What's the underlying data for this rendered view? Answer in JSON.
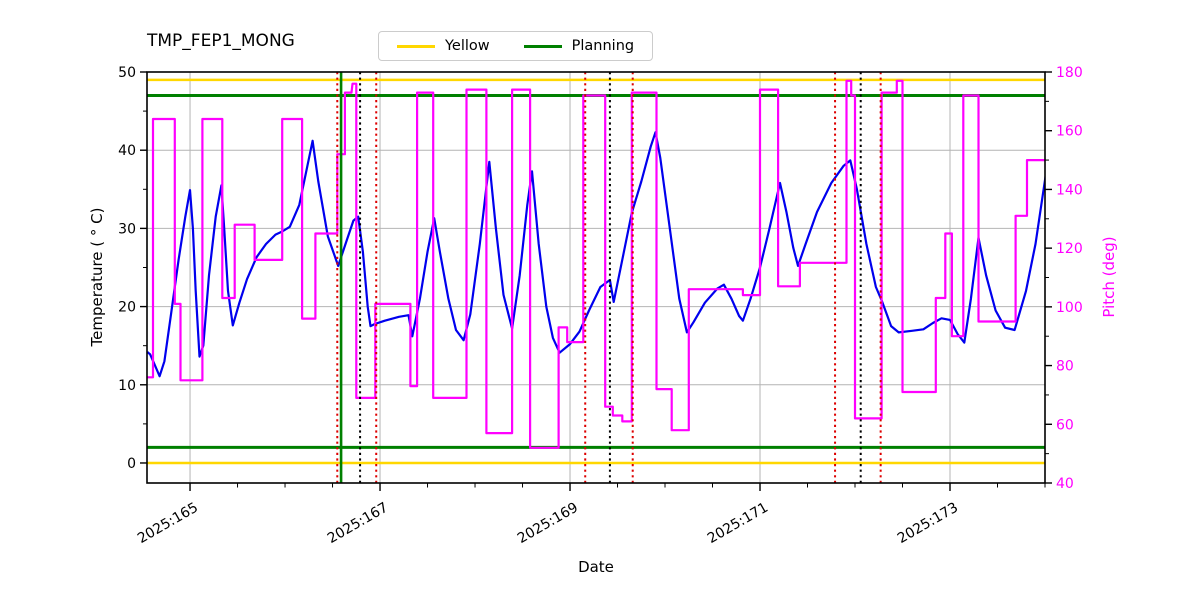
{
  "chart_data": {
    "type": "line",
    "title": "TMP_FEP1_MONG",
    "xlabel": "Date",
    "ylabel_left": "Temperature ( ° C)",
    "ylabel_right": "Pitch (deg)",
    "grid": true,
    "legend_position": "top-center",
    "legend": [
      {
        "label": "Yellow",
        "color": "#FFD700"
      },
      {
        "label": "Planning",
        "color": "#008000"
      }
    ],
    "xlim": [
      164.547,
      174.0
    ],
    "ylim_left": [
      -2.56,
      50
    ],
    "ylim_right": [
      40,
      180
    ],
    "x_major_ticks": [
      165,
      167,
      169,
      171,
      173
    ],
    "x_tick_labels": [
      "2025:165",
      "2025:167",
      "2025:169",
      "2025:171",
      "2025:173"
    ],
    "x_minor_step": 0.5,
    "y_left_ticks": [
      0,
      10,
      20,
      30,
      40,
      50
    ],
    "y_right_ticks": [
      40,
      60,
      80,
      100,
      120,
      140,
      160,
      180
    ],
    "colors": {
      "temperature": "#0000EE",
      "pitch": "#FF00FF",
      "yellow_limit": "#FFD700",
      "planning_limit": "#008000",
      "event_red": "#DD0000",
      "event_black": "#000000",
      "event_green": "#008000",
      "grid": "#b4b4b4",
      "frame": "#000000"
    },
    "limit_lines": [
      {
        "name": "yellow-high",
        "axis": "left",
        "y": 49,
        "color": "#FFD700",
        "width": 2.5
      },
      {
        "name": "yellow-low",
        "axis": "left",
        "y": 0,
        "color": "#FFD700",
        "width": 2.5
      },
      {
        "name": "planning-high",
        "axis": "left",
        "y": 47,
        "color": "#008000",
        "width": 3
      },
      {
        "name": "planning-low",
        "axis": "left",
        "y": 2,
        "color": "#008000",
        "width": 3
      }
    ],
    "event_lines": [
      {
        "x": 166.55,
        "style": "dotted",
        "color": "#DD0000"
      },
      {
        "x": 166.59,
        "style": "solid",
        "color": "#008000"
      },
      {
        "x": 166.79,
        "style": "dotted",
        "color": "#000000"
      },
      {
        "x": 166.96,
        "style": "dotted",
        "color": "#DD0000"
      },
      {
        "x": 169.16,
        "style": "dotted",
        "color": "#DD0000"
      },
      {
        "x": 169.42,
        "style": "dotted",
        "color": "#000000"
      },
      {
        "x": 169.66,
        "style": "dotted",
        "color": "#DD0000"
      },
      {
        "x": 171.79,
        "style": "dotted",
        "color": "#DD0000"
      },
      {
        "x": 172.06,
        "style": "dotted",
        "color": "#000000"
      },
      {
        "x": 172.27,
        "style": "dotted",
        "color": "#DD0000"
      }
    ],
    "series": [
      {
        "name": "Temperature",
        "axis": "left",
        "color": "#0000EE",
        "width": 2.2,
        "points": [
          [
            164.55,
            14.2
          ],
          [
            164.58,
            13.9
          ],
          [
            164.62,
            12.8
          ],
          [
            164.68,
            11.1
          ],
          [
            164.73,
            13.0
          ],
          [
            164.8,
            19.0
          ],
          [
            164.88,
            26.0
          ],
          [
            164.95,
            31.5
          ],
          [
            165.0,
            34.9
          ],
          [
            165.03,
            30.0
          ],
          [
            165.06,
            22.0
          ],
          [
            165.1,
            13.6
          ],
          [
            165.14,
            15.0
          ],
          [
            165.2,
            24.0
          ],
          [
            165.27,
            31.5
          ],
          [
            165.33,
            35.5
          ],
          [
            165.36,
            30.0
          ],
          [
            165.4,
            22.0
          ],
          [
            165.45,
            17.6
          ],
          [
            165.52,
            20.5
          ],
          [
            165.6,
            23.5
          ],
          [
            165.7,
            26.3
          ],
          [
            165.8,
            28.0
          ],
          [
            165.9,
            29.2
          ],
          [
            165.97,
            29.6
          ],
          [
            166.05,
            30.2
          ],
          [
            166.15,
            33.0
          ],
          [
            166.29,
            41.2
          ],
          [
            166.35,
            36.0
          ],
          [
            166.45,
            29.0
          ],
          [
            166.56,
            25.2
          ],
          [
            166.65,
            28.5
          ],
          [
            166.72,
            31.0
          ],
          [
            166.77,
            31.5
          ],
          [
            166.82,
            27.0
          ],
          [
            166.87,
            20.0
          ],
          [
            166.9,
            17.5
          ],
          [
            166.95,
            17.8
          ],
          [
            167.05,
            18.2
          ],
          [
            167.2,
            18.7
          ],
          [
            167.3,
            18.9
          ],
          [
            167.34,
            16.2
          ],
          [
            167.42,
            21.0
          ],
          [
            167.5,
            27.0
          ],
          [
            167.57,
            31.3
          ],
          [
            167.63,
            27.0
          ],
          [
            167.72,
            21.0
          ],
          [
            167.8,
            17.0
          ],
          [
            167.88,
            15.7
          ],
          [
            167.95,
            19.0
          ],
          [
            168.05,
            28.0
          ],
          [
            168.15,
            38.5
          ],
          [
            168.22,
            30.0
          ],
          [
            168.3,
            21.5
          ],
          [
            168.39,
            17.2
          ],
          [
            168.47,
            24.0
          ],
          [
            168.55,
            33.0
          ],
          [
            168.6,
            37.3
          ],
          [
            168.67,
            28.0
          ],
          [
            168.75,
            20.0
          ],
          [
            168.82,
            16.0
          ],
          [
            168.89,
            14.1
          ],
          [
            169.0,
            15.2
          ],
          [
            169.1,
            16.8
          ],
          [
            169.2,
            19.5
          ],
          [
            169.32,
            22.5
          ],
          [
            169.42,
            23.4
          ],
          [
            169.46,
            20.6
          ],
          [
            169.55,
            26.0
          ],
          [
            169.65,
            32.0
          ],
          [
            169.75,
            36.0
          ],
          [
            169.85,
            40.5
          ],
          [
            169.9,
            42.3
          ],
          [
            169.95,
            39.0
          ],
          [
            170.05,
            30.0
          ],
          [
            170.15,
            21.0
          ],
          [
            170.23,
            16.7
          ],
          [
            170.3,
            18.0
          ],
          [
            170.42,
            20.5
          ],
          [
            170.55,
            22.3
          ],
          [
            170.62,
            22.8
          ],
          [
            170.7,
            21.0
          ],
          [
            170.78,
            18.8
          ],
          [
            170.82,
            18.2
          ],
          [
            170.9,
            21.0
          ],
          [
            171.0,
            25.0
          ],
          [
            171.1,
            30.0
          ],
          [
            171.21,
            35.8
          ],
          [
            171.28,
            32.0
          ],
          [
            171.35,
            27.5
          ],
          [
            171.4,
            25.2
          ],
          [
            171.48,
            28.0
          ],
          [
            171.6,
            32.1
          ],
          [
            171.75,
            35.8
          ],
          [
            171.88,
            38.0
          ],
          [
            171.95,
            38.7
          ],
          [
            172.02,
            35.0
          ],
          [
            172.12,
            28.0
          ],
          [
            172.22,
            22.5
          ],
          [
            172.28,
            20.8
          ],
          [
            172.38,
            17.5
          ],
          [
            172.46,
            16.7
          ],
          [
            172.6,
            16.9
          ],
          [
            172.72,
            17.1
          ],
          [
            172.82,
            17.9
          ],
          [
            172.91,
            18.5
          ],
          [
            173.0,
            18.3
          ],
          [
            173.08,
            16.5
          ],
          [
            173.15,
            15.4
          ],
          [
            173.22,
            21.0
          ],
          [
            173.3,
            28.8
          ],
          [
            173.38,
            24.0
          ],
          [
            173.48,
            19.5
          ],
          [
            173.58,
            17.3
          ],
          [
            173.68,
            17.0
          ],
          [
            173.8,
            22.0
          ],
          [
            173.9,
            28.0
          ],
          [
            174.03,
            38.6
          ]
        ]
      },
      {
        "name": "Pitch",
        "axis": "right",
        "color": "#FF00FF",
        "width": 2.2,
        "points": [
          [
            164.55,
            76
          ],
          [
            164.61,
            76
          ],
          [
            164.61,
            164
          ],
          [
            164.84,
            164
          ],
          [
            164.84,
            101
          ],
          [
            164.9,
            101
          ],
          [
            164.9,
            75
          ],
          [
            165.13,
            75
          ],
          [
            165.13,
            164
          ],
          [
            165.34,
            164
          ],
          [
            165.34,
            103
          ],
          [
            165.47,
            103
          ],
          [
            165.47,
            128
          ],
          [
            165.68,
            128
          ],
          [
            165.68,
            116
          ],
          [
            165.97,
            116
          ],
          [
            165.97,
            164
          ],
          [
            166.18,
            164
          ],
          [
            166.18,
            96
          ],
          [
            166.32,
            96
          ],
          [
            166.32,
            125
          ],
          [
            166.55,
            125
          ],
          [
            166.55,
            152
          ],
          [
            166.63,
            152
          ],
          [
            166.63,
            173
          ],
          [
            166.7,
            173
          ],
          [
            166.71,
            176
          ],
          [
            166.75,
            176
          ],
          [
            166.75,
            69
          ],
          [
            166.95,
            69
          ],
          [
            166.95,
            101
          ],
          [
            167.32,
            101
          ],
          [
            167.32,
            73
          ],
          [
            167.39,
            73
          ],
          [
            167.39,
            173
          ],
          [
            167.56,
            173
          ],
          [
            167.56,
            69
          ],
          [
            167.91,
            69
          ],
          [
            167.91,
            174
          ],
          [
            168.12,
            174
          ],
          [
            168.12,
            57
          ],
          [
            168.39,
            57
          ],
          [
            168.39,
            174
          ],
          [
            168.58,
            174
          ],
          [
            168.58,
            52
          ],
          [
            168.88,
            52
          ],
          [
            168.88,
            93
          ],
          [
            168.97,
            93
          ],
          [
            168.97,
            88
          ],
          [
            169.14,
            88
          ],
          [
            169.14,
            172
          ],
          [
            169.37,
            172
          ],
          [
            169.37,
            66
          ],
          [
            169.45,
            66
          ],
          [
            169.45,
            63
          ],
          [
            169.55,
            63
          ],
          [
            169.55,
            61
          ],
          [
            169.65,
            61
          ],
          [
            169.65,
            173
          ],
          [
            169.91,
            173
          ],
          [
            169.91,
            72
          ],
          [
            170.07,
            72
          ],
          [
            170.07,
            58
          ],
          [
            170.25,
            58
          ],
          [
            170.25,
            106
          ],
          [
            170.82,
            106
          ],
          [
            170.82,
            104
          ],
          [
            171.0,
            104
          ],
          [
            171.0,
            174
          ],
          [
            171.19,
            174
          ],
          [
            171.19,
            107
          ],
          [
            171.42,
            107
          ],
          [
            171.42,
            115
          ],
          [
            171.91,
            115
          ],
          [
            171.91,
            177
          ],
          [
            171.96,
            177
          ],
          [
            171.96,
            172
          ],
          [
            172.0,
            172
          ],
          [
            172.0,
            62
          ],
          [
            172.28,
            62
          ],
          [
            172.28,
            173
          ],
          [
            172.44,
            173
          ],
          [
            172.44,
            177
          ],
          [
            172.5,
            177
          ],
          [
            172.5,
            71
          ],
          [
            172.85,
            71
          ],
          [
            172.85,
            103
          ],
          [
            172.95,
            103
          ],
          [
            172.95,
            125
          ],
          [
            173.02,
            125
          ],
          [
            173.02,
            90
          ],
          [
            173.14,
            90
          ],
          [
            173.14,
            172
          ],
          [
            173.3,
            172
          ],
          [
            173.3,
            95
          ],
          [
            173.69,
            95
          ],
          [
            173.69,
            131
          ],
          [
            173.81,
            131
          ],
          [
            173.81,
            150
          ],
          [
            174.03,
            150
          ]
        ]
      }
    ]
  }
}
